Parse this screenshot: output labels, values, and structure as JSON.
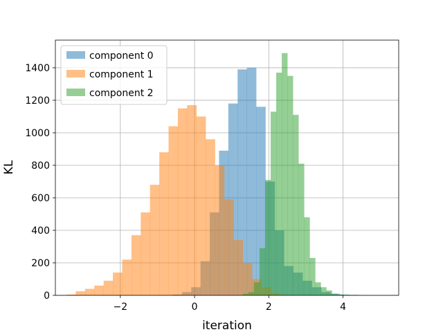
{
  "chart_data": {
    "type": "histogram",
    "title": "",
    "xlabel": "iteration",
    "ylabel": "KL",
    "xlim": [
      -3.75,
      5.5
    ],
    "ylim": [
      0,
      1570
    ],
    "xticks": [
      -2,
      0,
      2,
      4
    ],
    "xtick_labels": [
      "−2",
      "0",
      "2",
      "4"
    ],
    "yticks": [
      0,
      200,
      400,
      600,
      800,
      1000,
      1200,
      1400
    ],
    "ytick_labels": [
      "0",
      "200",
      "400",
      "600",
      "800",
      "1000",
      "1200",
      "1400"
    ],
    "grid": true,
    "legend": "upper left",
    "series": [
      {
        "name": "component 0",
        "color": "#1f77b4",
        "opacity": 0.5,
        "bin_edges": [
          -0.6,
          -0.34,
          -0.09,
          0.16,
          0.41,
          0.66,
          0.91,
          1.16,
          1.41,
          1.66,
          1.91,
          2.16,
          2.41,
          2.66,
          2.91,
          3.16,
          3.41,
          3.66,
          3.91,
          4.16,
          4.41,
          4.66,
          4.91,
          5.16
        ],
        "counts": [
          5,
          20,
          50,
          210,
          510,
          890,
          1180,
          1390,
          1400,
          1160,
          700,
          400,
          180,
          140,
          90,
          50,
          20,
          10,
          5,
          3,
          2,
          1,
          1
        ]
      },
      {
        "name": "component 1",
        "color": "#ff7f0e",
        "opacity": 0.5,
        "bin_edges": [
          -3.45,
          -3.2,
          -2.95,
          -2.7,
          -2.45,
          -2.2,
          -1.95,
          -1.7,
          -1.45,
          -1.2,
          -0.95,
          -0.7,
          -0.45,
          -0.2,
          0.05,
          0.3,
          0.55,
          0.8,
          1.05,
          1.3,
          1.55,
          1.8,
          2.05,
          2.3
        ],
        "counts": [
          5,
          25,
          40,
          60,
          90,
          140,
          220,
          370,
          510,
          680,
          880,
          1040,
          1150,
          1170,
          1100,
          960,
          800,
          590,
          340,
          200,
          100,
          50,
          15
        ]
      },
      {
        "name": "component 2",
        "color": "#2ca02c",
        "opacity": 0.5,
        "bin_edges": [
          1.3,
          1.45,
          1.6,
          1.75,
          1.9,
          2.05,
          2.2,
          2.35,
          2.5,
          2.65,
          2.8,
          2.95,
          3.1,
          3.25,
          3.4,
          3.55,
          3.7,
          3.85,
          4.0
        ],
        "counts": [
          10,
          20,
          80,
          290,
          710,
          1130,
          1370,
          1490,
          1350,
          1110,
          810,
          480,
          230,
          80,
          50,
          30,
          10,
          5
        ]
      }
    ]
  }
}
